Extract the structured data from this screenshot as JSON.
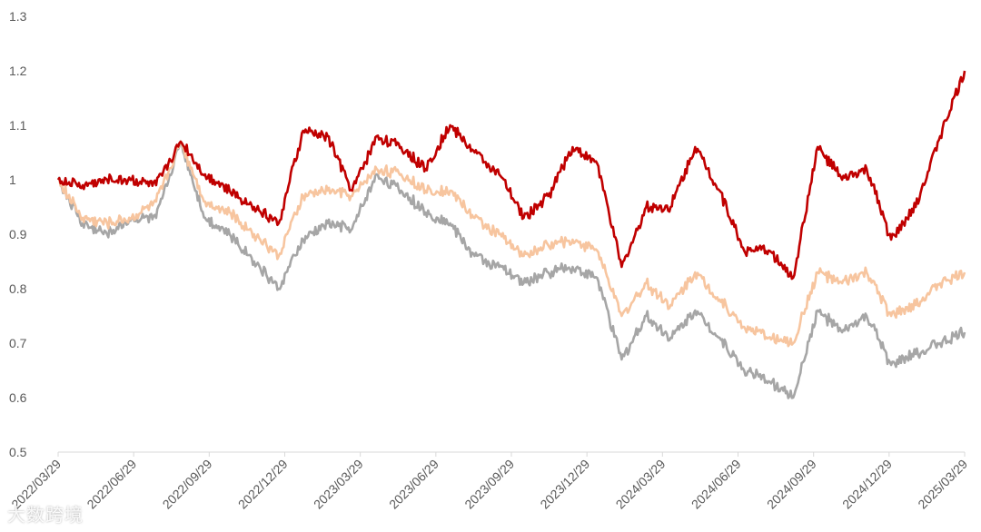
{
  "watermark": "大数跨境",
  "chart_data": {
    "type": "line",
    "ylim": [
      0.5,
      1.3
    ],
    "yticks": [
      "0.5",
      "0.6",
      "0.7",
      "0.8",
      "0.9",
      "1",
      "1.1",
      "1.2",
      "1.3"
    ],
    "xticks": [
      "2022/03/29",
      "2022/06/29",
      "2022/09/29",
      "2022/12/29",
      "2023/03/29",
      "2023/06/29",
      "2023/09/29",
      "2023/12/29",
      "2024/03/29",
      "2024/06/29",
      "2024/09/29",
      "2024/12/29",
      "2025/03/29"
    ],
    "grid": false,
    "legend": "none",
    "series": [
      {
        "color": "#C00000",
        "values": [
          1.0,
          0.99,
          1.0,
          1.0,
          0.99,
          1.07,
          1.01,
          0.98,
          0.95,
          0.92,
          1.09,
          1.08,
          0.98,
          1.08,
          1.06,
          1.02,
          1.1,
          1.05,
          1.01,
          0.93,
          0.97,
          1.06,
          1.03,
          0.84,
          0.95,
          0.95,
          1.06,
          0.98,
          0.87,
          0.87,
          0.82,
          1.06,
          1.0,
          1.02,
          0.89,
          0.95,
          1.08,
          1.2
        ]
      },
      {
        "color": "#F7C59F",
        "values": [
          1.0,
          0.93,
          0.92,
          0.93,
          0.96,
          1.07,
          0.96,
          0.94,
          0.9,
          0.86,
          0.97,
          0.98,
          0.97,
          1.02,
          1.01,
          0.98,
          0.98,
          0.93,
          0.9,
          0.86,
          0.88,
          0.89,
          0.87,
          0.75,
          0.81,
          0.77,
          0.83,
          0.78,
          0.73,
          0.71,
          0.7,
          0.83,
          0.81,
          0.83,
          0.75,
          0.77,
          0.81,
          0.83
        ]
      },
      {
        "color": "#A6A6A6",
        "values": [
          1.0,
          0.92,
          0.9,
          0.93,
          0.93,
          1.07,
          0.93,
          0.9,
          0.85,
          0.8,
          0.89,
          0.92,
          0.91,
          1.01,
          0.98,
          0.94,
          0.92,
          0.86,
          0.84,
          0.81,
          0.83,
          0.84,
          0.82,
          0.67,
          0.75,
          0.71,
          0.76,
          0.71,
          0.65,
          0.63,
          0.6,
          0.76,
          0.72,
          0.75,
          0.66,
          0.68,
          0.7,
          0.72
        ]
      }
    ]
  }
}
